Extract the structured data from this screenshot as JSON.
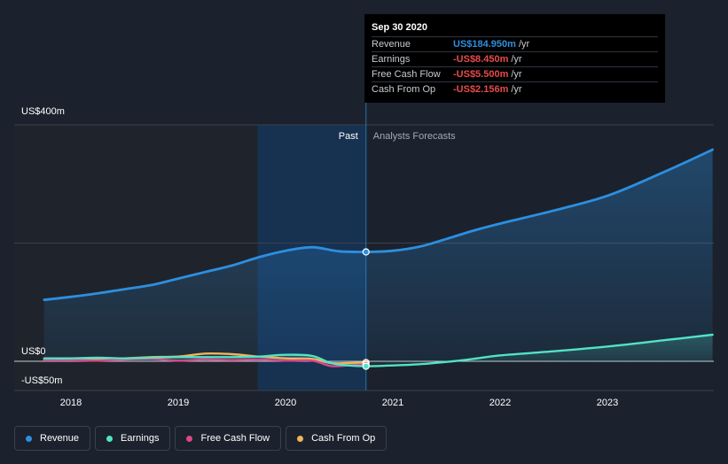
{
  "chart_data": {
    "type": "line",
    "x_ticks": [
      "2018",
      "2019",
      "2020",
      "2021",
      "2022",
      "2023"
    ],
    "y_axis_labels": [
      "US$400m",
      "US$0",
      "-US$50m"
    ],
    "ylim": [
      -50,
      400
    ],
    "region_labels": {
      "past": "Past",
      "forecast": "Analysts Forecasts"
    },
    "divider_date": 2020.75,
    "series": [
      {
        "name": "Revenue",
        "color": "#2d8fe0",
        "area": true,
        "points": [
          [
            2017.75,
            104
          ],
          [
            2018.0,
            109
          ],
          [
            2018.25,
            115
          ],
          [
            2018.5,
            122
          ],
          [
            2018.75,
            129
          ],
          [
            2019.0,
            140
          ],
          [
            2019.25,
            151
          ],
          [
            2019.5,
            162
          ],
          [
            2019.75,
            176
          ],
          [
            2020.0,
            187
          ],
          [
            2020.25,
            193
          ],
          [
            2020.5,
            186
          ],
          [
            2020.75,
            185
          ],
          [
            2021.0,
            187
          ],
          [
            2021.25,
            194
          ],
          [
            2021.5,
            207
          ],
          [
            2021.75,
            221
          ],
          [
            2022.0,
            233
          ],
          [
            2022.5,
            255
          ],
          [
            2023.0,
            280
          ],
          [
            2023.5,
            318
          ],
          [
            2023.98,
            358
          ]
        ]
      },
      {
        "name": "Earnings",
        "color": "#52e3c6",
        "area": true,
        "points": [
          [
            2017.75,
            5
          ],
          [
            2018.0,
            5
          ],
          [
            2018.25,
            6
          ],
          [
            2018.5,
            5
          ],
          [
            2018.75,
            6
          ],
          [
            2019.0,
            7
          ],
          [
            2019.25,
            7
          ],
          [
            2019.5,
            7
          ],
          [
            2019.75,
            8
          ],
          [
            2020.0,
            11
          ],
          [
            2020.25,
            9
          ],
          [
            2020.42,
            -3
          ],
          [
            2020.58,
            -7
          ],
          [
            2020.75,
            -8.45
          ],
          [
            2021.0,
            -7
          ],
          [
            2021.25,
            -5
          ],
          [
            2021.5,
            -1
          ],
          [
            2021.75,
            4
          ],
          [
            2022.0,
            10
          ],
          [
            2022.5,
            17
          ],
          [
            2023.0,
            25
          ],
          [
            2023.5,
            35
          ],
          [
            2023.98,
            45
          ]
        ]
      },
      {
        "name": "Free Cash Flow",
        "color": "#d9488d",
        "area": false,
        "points": [
          [
            2017.75,
            2
          ],
          [
            2018.0,
            2
          ],
          [
            2018.25,
            1
          ],
          [
            2018.5,
            3
          ],
          [
            2018.75,
            4
          ],
          [
            2019.0,
            1
          ],
          [
            2019.25,
            3
          ],
          [
            2019.5,
            2
          ],
          [
            2019.75,
            3
          ],
          [
            2020.0,
            1
          ],
          [
            2020.25,
            1
          ],
          [
            2020.42,
            -8
          ],
          [
            2020.58,
            -7
          ],
          [
            2020.75,
            -5.5
          ]
        ]
      },
      {
        "name": "Cash From Op",
        "color": "#f0b45b",
        "area": false,
        "points": [
          [
            2017.75,
            3
          ],
          [
            2018.0,
            4
          ],
          [
            2018.25,
            3
          ],
          [
            2018.5,
            5
          ],
          [
            2018.75,
            7
          ],
          [
            2019.0,
            8
          ],
          [
            2019.25,
            13
          ],
          [
            2019.5,
            12
          ],
          [
            2019.75,
            8
          ],
          [
            2020.0,
            5
          ],
          [
            2020.25,
            4
          ],
          [
            2020.42,
            -3
          ],
          [
            2020.58,
            -3
          ],
          [
            2020.75,
            -2.156
          ]
        ]
      }
    ],
    "tooltip": {
      "date": "Sep 30 2020",
      "rows": [
        {
          "label": "Revenue",
          "value": "US$184.950m",
          "unit": "/yr",
          "color": "#2d8fe0"
        },
        {
          "label": "Earnings",
          "value": "-US$8.450m",
          "unit": "/yr",
          "color": "#e64b4b"
        },
        {
          "label": "Free Cash Flow",
          "value": "-US$5.500m",
          "unit": "/yr",
          "color": "#e64b4b"
        },
        {
          "label": "Cash From Op",
          "value": "-US$2.156m",
          "unit": "/yr",
          "color": "#e64b4b"
        }
      ]
    }
  },
  "legend": [
    {
      "label": "Revenue",
      "color": "#2d8fe0"
    },
    {
      "label": "Earnings",
      "color": "#52e3c6"
    },
    {
      "label": "Free Cash Flow",
      "color": "#d9488d"
    },
    {
      "label": "Cash From Op",
      "color": "#f0b45b"
    }
  ]
}
